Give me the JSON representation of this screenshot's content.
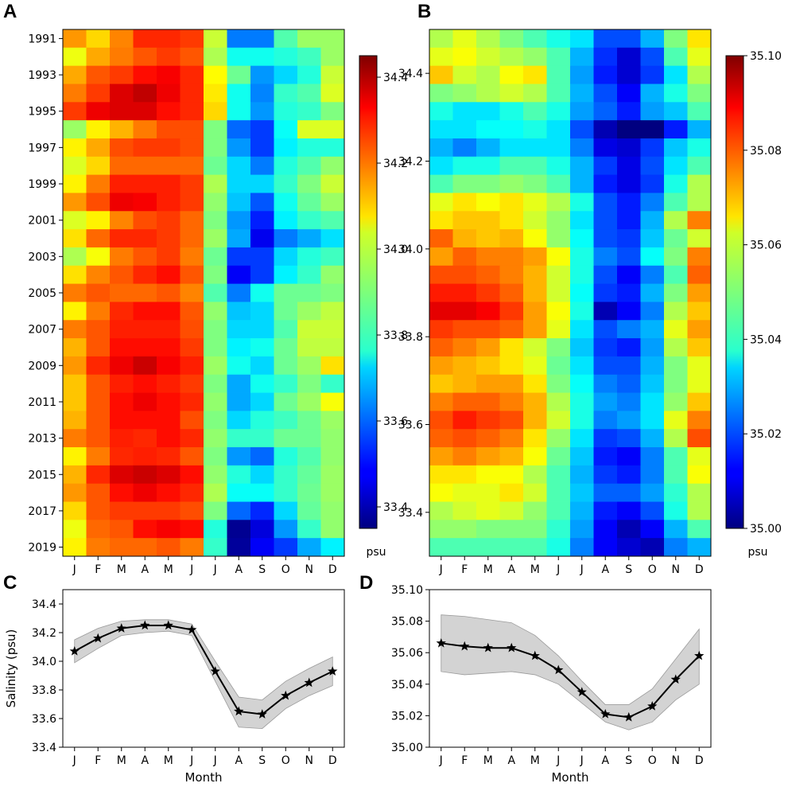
{
  "chart_data": [
    {
      "panel": "A",
      "type": "heatmap",
      "x_ticklabels": [
        "J",
        "F",
        "M",
        "A",
        "M",
        "J",
        "J",
        "A",
        "S",
        "O",
        "N",
        "D"
      ],
      "y_ticklabels": [
        "1991",
        "1993",
        "1995",
        "1997",
        "1999",
        "2001",
        "2003",
        "2005",
        "2007",
        "2009",
        "2011",
        "2013",
        "2015",
        "2017",
        "2019"
      ],
      "years": [
        1991,
        1992,
        1993,
        1994,
        1995,
        1996,
        1997,
        1998,
        1999,
        2000,
        2001,
        2002,
        2003,
        2004,
        2005,
        2006,
        2007,
        2008,
        2009,
        2010,
        2011,
        2012,
        2013,
        2014,
        2015,
        2016,
        2017,
        2018,
        2019
      ],
      "colorbar": {
        "label": "psu",
        "vmin": 33.35,
        "vmax": 34.45,
        "ticks": [
          33.4,
          33.6,
          33.8,
          34.0,
          34.2,
          34.4
        ],
        "ticklabels": [
          "33.4",
          "33.6",
          "33.8",
          "34.0",
          "34.2",
          "34.4"
        ],
        "colormap": "jet"
      },
      "values": [
        [
          34.15,
          34.08,
          34.17,
          34.27,
          34.27,
          34.25,
          33.98,
          33.62,
          33.62,
          33.85,
          33.93,
          33.93
        ],
        [
          34.02,
          34.13,
          34.18,
          34.22,
          34.25,
          34.22,
          33.95,
          33.78,
          33.78,
          33.8,
          33.83,
          33.93
        ],
        [
          34.13,
          34.22,
          34.25,
          34.3,
          34.32,
          34.27,
          34.04,
          33.88,
          33.65,
          33.72,
          33.8,
          33.98
        ],
        [
          34.18,
          34.25,
          34.35,
          34.38,
          34.33,
          34.27,
          34.06,
          33.78,
          33.63,
          33.82,
          33.85,
          34.0
        ],
        [
          34.25,
          34.33,
          34.35,
          34.35,
          34.3,
          34.27,
          34.08,
          33.78,
          33.65,
          33.8,
          33.82,
          33.9
        ],
        [
          33.93,
          34.05,
          34.12,
          34.18,
          34.23,
          34.23,
          33.9,
          33.6,
          33.55,
          33.77,
          34.0,
          34.0
        ],
        [
          34.05,
          34.13,
          34.23,
          34.25,
          34.25,
          34.23,
          33.9,
          33.65,
          33.55,
          33.75,
          33.8,
          33.8
        ],
        [
          34.0,
          34.08,
          34.2,
          34.2,
          34.2,
          34.2,
          33.88,
          33.72,
          33.62,
          33.8,
          33.85,
          33.92
        ],
        [
          34.05,
          34.18,
          34.28,
          34.28,
          34.28,
          34.25,
          33.95,
          33.72,
          33.72,
          33.82,
          33.9,
          33.98
        ],
        [
          34.15,
          34.23,
          34.33,
          34.32,
          34.28,
          34.25,
          33.92,
          33.7,
          33.58,
          33.78,
          33.87,
          33.93
        ],
        [
          34.0,
          34.05,
          34.17,
          34.23,
          34.25,
          34.2,
          33.9,
          33.65,
          33.52,
          33.75,
          33.82,
          33.85
        ],
        [
          34.07,
          34.2,
          34.27,
          34.27,
          34.25,
          34.2,
          33.93,
          33.67,
          33.47,
          33.62,
          33.67,
          33.73
        ],
        [
          33.95,
          34.03,
          34.18,
          34.22,
          34.25,
          34.18,
          33.88,
          33.55,
          33.55,
          33.72,
          33.8,
          33.83
        ],
        [
          34.07,
          34.17,
          34.22,
          34.27,
          34.3,
          34.22,
          33.9,
          33.48,
          33.55,
          33.75,
          33.82,
          33.92
        ],
        [
          34.18,
          34.22,
          34.2,
          34.2,
          34.22,
          34.17,
          33.85,
          33.62,
          33.78,
          33.88,
          33.88,
          33.9
        ],
        [
          34.05,
          34.18,
          34.27,
          34.3,
          34.3,
          34.22,
          33.92,
          33.7,
          33.72,
          33.88,
          33.93,
          33.97
        ],
        [
          34.18,
          34.22,
          34.28,
          34.28,
          34.28,
          34.23,
          33.9,
          33.72,
          33.72,
          33.85,
          33.98,
          33.98
        ],
        [
          34.12,
          34.22,
          34.3,
          34.3,
          34.3,
          34.25,
          33.9,
          33.75,
          33.78,
          33.88,
          33.97,
          33.97
        ],
        [
          34.15,
          34.27,
          34.33,
          34.37,
          34.32,
          34.28,
          33.93,
          33.78,
          33.72,
          33.88,
          33.93,
          34.07
        ],
        [
          34.1,
          34.22,
          34.28,
          34.3,
          34.28,
          34.25,
          33.9,
          33.67,
          33.78,
          33.82,
          33.9,
          33.82
        ],
        [
          34.1,
          34.22,
          34.3,
          34.33,
          34.3,
          34.27,
          33.92,
          33.67,
          33.72,
          33.88,
          33.93,
          34.03
        ],
        [
          34.12,
          34.22,
          34.3,
          34.3,
          34.3,
          34.23,
          33.9,
          33.72,
          33.8,
          33.83,
          33.88,
          33.93
        ],
        [
          34.18,
          34.22,
          34.28,
          34.27,
          34.3,
          34.27,
          33.92,
          33.82,
          33.82,
          33.88,
          33.88,
          33.92
        ],
        [
          34.05,
          34.18,
          34.27,
          34.28,
          34.27,
          34.22,
          33.9,
          33.65,
          33.6,
          33.8,
          33.85,
          33.92
        ],
        [
          34.12,
          34.27,
          34.35,
          34.37,
          34.35,
          34.3,
          33.92,
          33.8,
          33.72,
          33.82,
          33.87,
          33.93
        ],
        [
          34.15,
          34.22,
          34.3,
          34.33,
          34.3,
          34.27,
          33.95,
          33.77,
          33.77,
          33.82,
          33.88,
          33.93
        ],
        [
          34.08,
          34.22,
          34.25,
          34.25,
          34.25,
          34.23,
          33.9,
          33.6,
          33.53,
          33.72,
          33.87,
          33.92
        ],
        [
          34.02,
          34.2,
          34.22,
          34.3,
          34.32,
          34.3,
          33.8,
          33.37,
          33.45,
          33.65,
          33.82,
          33.92
        ],
        [
          34.05,
          34.18,
          34.2,
          34.2,
          34.22,
          34.18,
          33.82,
          33.38,
          33.48,
          33.55,
          33.67,
          33.75
        ]
      ]
    },
    {
      "panel": "B",
      "type": "heatmap",
      "x_ticklabels": [
        "J",
        "F",
        "M",
        "A",
        "M",
        "J",
        "J",
        "A",
        "S",
        "O",
        "N",
        "D"
      ],
      "y_ticklabels": [
        "34.4",
        "34.2",
        "34.0",
        "33.8",
        "33.6",
        "33.4"
      ],
      "y_tick_positions": [
        34.4,
        34.2,
        34.0,
        33.8,
        33.6,
        33.4
      ],
      "y_range": [
        34.5,
        33.3
      ],
      "colorbar": {
        "label": "psu",
        "vmin": 35.0,
        "vmax": 35.1,
        "ticks": [
          35.0,
          35.02,
          35.04,
          35.06,
          35.08,
          35.1
        ],
        "ticklabels": [
          "35.00",
          "35.02",
          "35.04",
          "35.06",
          "35.08",
          "35.10"
        ],
        "colormap": "jet"
      },
      "values": [
        [
          35.055,
          35.06,
          35.055,
          35.05,
          35.045,
          35.04,
          35.035,
          35.02,
          35.02,
          35.03,
          35.05,
          35.065
        ],
        [
          35.06,
          35.062,
          35.058,
          35.055,
          35.052,
          35.045,
          35.03,
          35.017,
          35.008,
          35.02,
          35.045,
          35.06
        ],
        [
          35.068,
          35.058,
          35.055,
          35.062,
          35.065,
          35.045,
          35.028,
          35.015,
          35.008,
          35.018,
          35.035,
          35.055
        ],
        [
          35.05,
          35.052,
          35.055,
          35.058,
          35.055,
          35.045,
          35.03,
          35.02,
          35.012,
          35.03,
          35.04,
          35.05
        ],
        [
          35.04,
          35.035,
          35.035,
          35.04,
          35.045,
          35.04,
          35.028,
          35.022,
          35.015,
          35.028,
          35.032,
          35.045
        ],
        [
          35.035,
          35.035,
          35.038,
          35.038,
          35.04,
          35.035,
          35.02,
          35.005,
          35.0,
          35.0,
          35.015,
          35.03
        ],
        [
          35.03,
          35.025,
          35.03,
          35.035,
          35.035,
          35.035,
          35.025,
          35.01,
          35.008,
          35.018,
          35.032,
          35.04
        ],
        [
          35.035,
          35.04,
          35.04,
          35.045,
          35.045,
          35.04,
          35.03,
          35.018,
          35.01,
          35.02,
          35.035,
          35.045
        ],
        [
          35.045,
          35.05,
          35.05,
          35.052,
          35.05,
          35.045,
          35.03,
          35.015,
          35.01,
          35.018,
          35.04,
          35.055
        ],
        [
          35.06,
          35.065,
          35.062,
          35.065,
          35.06,
          35.055,
          35.04,
          35.02,
          35.015,
          35.025,
          35.045,
          35.055
        ],
        [
          35.065,
          35.068,
          35.068,
          35.065,
          35.058,
          35.052,
          35.035,
          35.02,
          35.015,
          35.03,
          35.055,
          35.075
        ],
        [
          35.078,
          35.07,
          35.068,
          35.07,
          35.062,
          35.052,
          35.038,
          35.02,
          35.018,
          35.032,
          35.048,
          35.058
        ],
        [
          35.072,
          35.078,
          35.075,
          35.075,
          35.072,
          35.062,
          35.04,
          35.025,
          35.02,
          35.038,
          35.05,
          35.075
        ],
        [
          35.08,
          35.08,
          35.078,
          35.075,
          35.07,
          35.058,
          35.04,
          35.02,
          35.012,
          35.025,
          35.045,
          35.078
        ],
        [
          35.085,
          35.085,
          35.082,
          35.078,
          35.07,
          35.058,
          35.038,
          35.018,
          35.015,
          35.03,
          35.05,
          35.072
        ],
        [
          35.09,
          35.09,
          35.088,
          35.082,
          35.072,
          35.062,
          35.04,
          35.005,
          35.012,
          35.025,
          35.055,
          35.068
        ],
        [
          35.082,
          35.08,
          35.08,
          35.078,
          35.072,
          35.06,
          35.035,
          35.02,
          35.025,
          35.03,
          35.06,
          35.072
        ],
        [
          35.078,
          35.075,
          35.072,
          35.065,
          35.058,
          35.05,
          35.032,
          35.018,
          35.015,
          35.028,
          35.055,
          35.068
        ],
        [
          35.072,
          35.07,
          35.068,
          35.065,
          35.06,
          35.048,
          35.035,
          35.02,
          35.02,
          35.03,
          35.05,
          35.06
        ],
        [
          35.068,
          35.07,
          35.072,
          35.072,
          35.065,
          35.05,
          35.038,
          35.025,
          35.022,
          35.032,
          35.05,
          35.06
        ],
        [
          35.075,
          35.078,
          35.078,
          35.075,
          35.07,
          35.055,
          35.04,
          35.028,
          35.025,
          35.035,
          35.052,
          35.068
        ],
        [
          35.08,
          35.085,
          35.082,
          35.08,
          35.07,
          35.058,
          35.04,
          35.025,
          35.028,
          35.035,
          35.06,
          35.075
        ],
        [
          35.078,
          35.08,
          35.078,
          35.075,
          35.065,
          35.052,
          35.035,
          35.018,
          35.02,
          35.03,
          35.055,
          35.08
        ],
        [
          35.072,
          35.075,
          35.072,
          35.07,
          35.062,
          35.048,
          35.032,
          35.015,
          35.012,
          35.025,
          35.045,
          35.06
        ],
        [
          35.065,
          35.065,
          35.062,
          35.062,
          35.055,
          35.045,
          35.03,
          35.018,
          35.015,
          35.025,
          35.045,
          35.062
        ],
        [
          35.062,
          35.06,
          35.06,
          35.065,
          35.058,
          35.045,
          35.032,
          35.022,
          35.022,
          35.028,
          35.042,
          35.055
        ],
        [
          35.055,
          35.058,
          35.06,
          35.058,
          35.052,
          35.045,
          35.03,
          35.015,
          35.012,
          35.02,
          35.04,
          35.055
        ],
        [
          35.052,
          35.052,
          35.05,
          35.05,
          35.05,
          35.042,
          35.028,
          35.012,
          35.005,
          35.012,
          35.03,
          35.045
        ],
        [
          35.045,
          35.045,
          35.045,
          35.045,
          35.045,
          35.04,
          35.025,
          35.012,
          35.008,
          35.005,
          35.025,
          35.03
        ]
      ]
    },
    {
      "panel": "C",
      "type": "line",
      "categories": [
        "J",
        "F",
        "M",
        "A",
        "M",
        "J",
        "J",
        "A",
        "S",
        "O",
        "N",
        "D"
      ],
      "series": [
        {
          "values": [
            34.07,
            34.16,
            34.23,
            34.25,
            34.25,
            34.22,
            33.93,
            33.65,
            33.63,
            33.76,
            33.85,
            33.93
          ],
          "lower": [
            33.99,
            34.09,
            34.18,
            34.2,
            34.21,
            34.18,
            33.86,
            33.54,
            33.53,
            33.67,
            33.76,
            33.83
          ],
          "upper": [
            34.15,
            34.23,
            34.28,
            34.29,
            34.29,
            34.26,
            34.0,
            33.75,
            33.73,
            33.86,
            33.95,
            34.03
          ]
        }
      ],
      "xlabel": "Month",
      "ylabel": "Salinity (psu)",
      "ylim": [
        33.4,
        34.5
      ],
      "yticks": [
        33.4,
        33.6,
        33.8,
        34.0,
        34.2,
        34.4
      ],
      "yticklabels": [
        "33.4",
        "33.6",
        "33.8",
        "34.0",
        "34.2",
        "34.4"
      ],
      "marker": "star",
      "band_color": "#d3d3d3",
      "line_color": "#000000"
    },
    {
      "panel": "D",
      "type": "line",
      "categories": [
        "J",
        "F",
        "M",
        "A",
        "M",
        "J",
        "J",
        "A",
        "S",
        "O",
        "N",
        "D"
      ],
      "series": [
        {
          "values": [
            35.066,
            35.064,
            35.063,
            35.063,
            35.058,
            35.049,
            35.035,
            35.021,
            35.019,
            35.026,
            35.043,
            35.058
          ],
          "lower": [
            35.048,
            35.046,
            35.047,
            35.048,
            35.046,
            35.04,
            35.028,
            35.016,
            35.011,
            35.016,
            35.03,
            35.04
          ],
          "upper": [
            35.084,
            35.083,
            35.081,
            35.079,
            35.071,
            35.058,
            35.042,
            35.027,
            35.027,
            35.037,
            35.056,
            35.075
          ]
        }
      ],
      "xlabel": "Month",
      "ylabel": "",
      "ylim": [
        35.0,
        35.1
      ],
      "yticks": [
        35.0,
        35.02,
        35.04,
        35.06,
        35.08,
        35.1
      ],
      "yticklabels": [
        "35.00",
        "35.02",
        "35.04",
        "35.06",
        "35.08",
        "35.10"
      ],
      "marker": "star",
      "band_color": "#d3d3d3",
      "line_color": "#000000"
    }
  ],
  "panel_letters": {
    "a": "A",
    "b": "B",
    "c": "C",
    "d": "D"
  }
}
